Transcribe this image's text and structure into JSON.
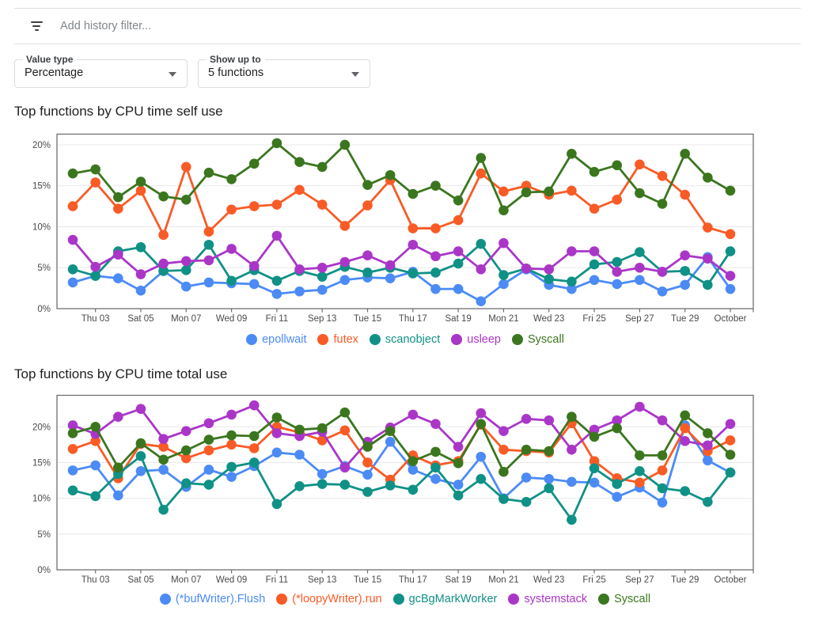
{
  "filter_bar": {
    "placeholder": "Add history filter...",
    "icon": "filter-list-icon"
  },
  "controls": [
    {
      "label": "Value type",
      "value": "Percentage"
    },
    {
      "label": "Show up to",
      "value": "5 functions"
    }
  ],
  "palette": {
    "blue": "#4c8bf5",
    "orange": "#f95b26",
    "teal": "#109186",
    "purple": "#aa36c8",
    "green": "#3b761f",
    "grid": "#e8e8e8",
    "axis": "#6f6f6f",
    "tick_label": "#4a4a4a"
  },
  "chart_data": [
    {
      "type": "line",
      "title": "Top functions by CPU time self use",
      "xlabel": "",
      "ylabel": "",
      "grid": true,
      "legend_position": "bottom",
      "ylim": [
        0,
        21.3
      ],
      "y_tick_labels": [
        "0%",
        "5%",
        "10%",
        "15%",
        "20%"
      ],
      "x_tick_labels": [
        "Thu 03",
        "Sat 05",
        "Mon 07",
        "Wed 09",
        "Fri 11",
        "Sep 13",
        "Tue 15",
        "Thu 17",
        "Sat 19",
        "Mon 21",
        "Wed 23",
        "Fri 25",
        "Sep 27",
        "Tue 29",
        "October"
      ],
      "series": [
        {
          "name": "epollwait",
          "color": "#4c8bf5",
          "values": [
            3.2,
            4.0,
            3.7,
            2.2,
            4.6,
            2.7,
            3.2,
            3.1,
            3.0,
            1.8,
            2.1,
            2.3,
            3.5,
            3.8,
            3.7,
            4.5,
            2.4,
            2.4,
            0.9,
            3.0,
            4.8,
            2.9,
            2.4,
            3.5,
            3.0,
            3.5,
            2.1,
            2.9,
            6.3,
            2.4
          ]
        },
        {
          "name": "futex",
          "color": "#f95b26",
          "values": [
            12.5,
            15.4,
            12.2,
            14.4,
            9.0,
            17.3,
            9.4,
            12.1,
            12.5,
            12.7,
            14.5,
            12.7,
            10.1,
            12.6,
            15.7,
            9.8,
            9.8,
            10.8,
            16.5,
            14.3,
            15.0,
            13.9,
            14.4,
            12.2,
            13.3,
            17.6,
            16.2,
            13.9,
            9.9,
            9.1
          ]
        },
        {
          "name": "scanobject",
          "color": "#109186",
          "values": [
            4.8,
            4.0,
            7.0,
            7.5,
            4.6,
            4.7,
            7.8,
            3.4,
            4.7,
            3.4,
            4.6,
            3.9,
            5.1,
            4.4,
            5.0,
            4.3,
            4.4,
            5.5,
            7.9,
            4.1,
            4.9,
            3.6,
            3.3,
            5.4,
            5.7,
            6.9,
            4.5,
            4.6,
            2.9,
            7.0
          ]
        },
        {
          "name": "usleep",
          "color": "#aa36c8",
          "values": [
            8.4,
            5.1,
            6.6,
            4.2,
            5.5,
            5.8,
            5.9,
            7.3,
            5.2,
            8.9,
            4.8,
            5.0,
            5.7,
            6.5,
            5.3,
            7.8,
            6.4,
            7.0,
            4.8,
            8.0,
            4.9,
            4.8,
            7.0,
            7.0,
            4.5,
            5.0,
            4.5,
            6.5,
            6.1,
            4.0
          ]
        },
        {
          "name": "Syscall",
          "color": "#3b761f",
          "values": [
            16.5,
            17.0,
            13.6,
            15.5,
            13.7,
            13.3,
            16.6,
            15.8,
            17.7,
            20.2,
            17.9,
            17.3,
            20.0,
            15.1,
            16.3,
            14.0,
            15.0,
            13.2,
            18.4,
            12.0,
            14.2,
            14.3,
            18.9,
            16.7,
            17.5,
            14.1,
            12.8,
            18.9,
            16.0,
            14.4
          ]
        }
      ]
    },
    {
      "type": "line",
      "title": "Top functions by CPU time total use",
      "xlabel": "",
      "ylabel": "",
      "grid": true,
      "legend_position": "bottom",
      "ylim": [
        0,
        24.4
      ],
      "y_tick_labels": [
        "0%",
        "5%",
        "10%",
        "15%",
        "20%"
      ],
      "x_tick_labels": [
        "Thu 03",
        "Sat 05",
        "Mon 07",
        "Wed 09",
        "Fri 11",
        "Sep 13",
        "Tue 15",
        "Thu 17",
        "Sat 19",
        "Mon 21",
        "Wed 23",
        "Fri 25",
        "Sep 27",
        "Tue 29",
        "October"
      ],
      "series": [
        {
          "name": "(*bufWriter).Flush",
          "color": "#4c8bf5",
          "values": [
            13.9,
            14.6,
            10.4,
            13.8,
            14.0,
            11.6,
            14.0,
            13.0,
            14.5,
            16.4,
            16.1,
            13.4,
            14.5,
            13.3,
            17.9,
            14.0,
            12.7,
            11.9,
            15.8,
            10.0,
            12.9,
            12.7,
            12.3,
            12.2,
            10.2,
            11.5,
            9.4,
            20.2,
            15.3,
            13.6
          ]
        },
        {
          "name": "(*loopyWriter).run",
          "color": "#f95b26",
          "values": [
            16.9,
            18.0,
            12.8,
            17.6,
            17.2,
            15.6,
            16.7,
            17.5,
            17.0,
            20.0,
            19.2,
            18.1,
            19.5,
            15.0,
            12.6,
            16.0,
            14.6,
            15.2,
            20.3,
            16.8,
            16.6,
            16.4,
            20.5,
            15.2,
            12.8,
            12.2,
            13.9,
            19.8,
            16.6,
            18.1
          ]
        },
        {
          "name": "gcBgMarkWorker",
          "color": "#109186",
          "values": [
            11.1,
            10.3,
            13.4,
            15.9,
            8.4,
            12.1,
            11.9,
            14.4,
            15.0,
            9.2,
            11.7,
            12.0,
            11.9,
            10.9,
            11.8,
            11.2,
            14.3,
            10.4,
            12.7,
            9.9,
            9.5,
            11.4,
            7.0,
            14.2,
            12.0,
            13.8,
            11.4,
            11.0,
            9.5,
            13.6
          ]
        },
        {
          "name": "systemstack",
          "color": "#aa36c8",
          "values": [
            20.2,
            19.0,
            21.4,
            22.5,
            18.3,
            19.4,
            20.5,
            21.7,
            23.0,
            19.1,
            18.7,
            19.3,
            14.3,
            17.9,
            19.9,
            21.7,
            20.4,
            17.2,
            21.9,
            19.4,
            21.1,
            20.9,
            16.8,
            19.6,
            20.9,
            22.8,
            20.9,
            18.0,
            17.4,
            20.4
          ]
        },
        {
          "name": "Syscall",
          "color": "#3b761f",
          "values": [
            19.1,
            20.0,
            14.3,
            17.7,
            15.4,
            16.7,
            18.2,
            18.8,
            18.7,
            21.3,
            19.6,
            19.8,
            22.0,
            17.2,
            19.4,
            15.2,
            16.5,
            14.9,
            20.4,
            13.7,
            16.8,
            16.6,
            21.4,
            18.6,
            19.8,
            16.0,
            16.0,
            21.6,
            19.1,
            16.1
          ]
        }
      ]
    }
  ]
}
